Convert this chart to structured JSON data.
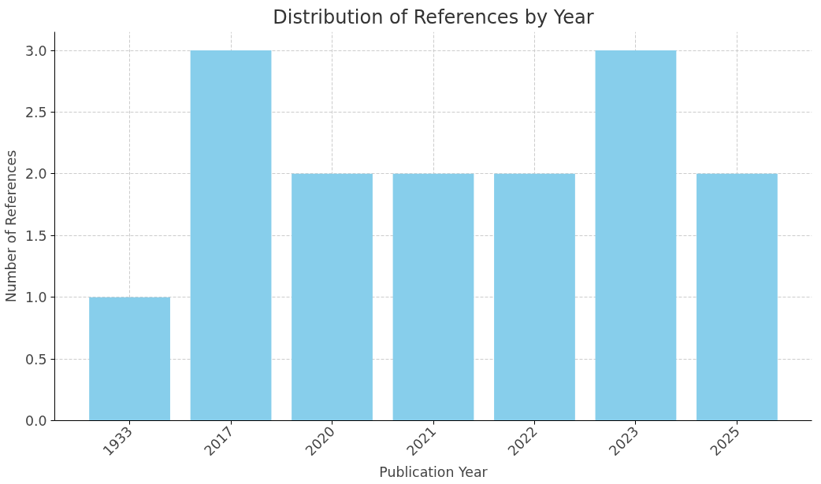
{
  "chart_data": {
    "type": "bar",
    "title": "Distribution of References by Year",
    "xlabel": "Publication Year",
    "ylabel": "Number of References",
    "categories": [
      "1933",
      "2017",
      "2020",
      "2021",
      "2022",
      "2023",
      "2025"
    ],
    "values": [
      1,
      3,
      2,
      2,
      2,
      3,
      2
    ],
    "color": "#87ceeb",
    "ylim": [
      0,
      3.15
    ],
    "yticks": [
      {
        "value": 0,
        "label": "0.0"
      },
      {
        "value": 0.5,
        "label": "0.5"
      },
      {
        "value": 1,
        "label": "1.0"
      },
      {
        "value": 1.5,
        "label": "1.5"
      },
      {
        "value": 2,
        "label": "2.0"
      },
      {
        "value": 2.5,
        "label": "2.5"
      },
      {
        "value": 3,
        "label": "3.0"
      }
    ],
    "grid": true
  }
}
